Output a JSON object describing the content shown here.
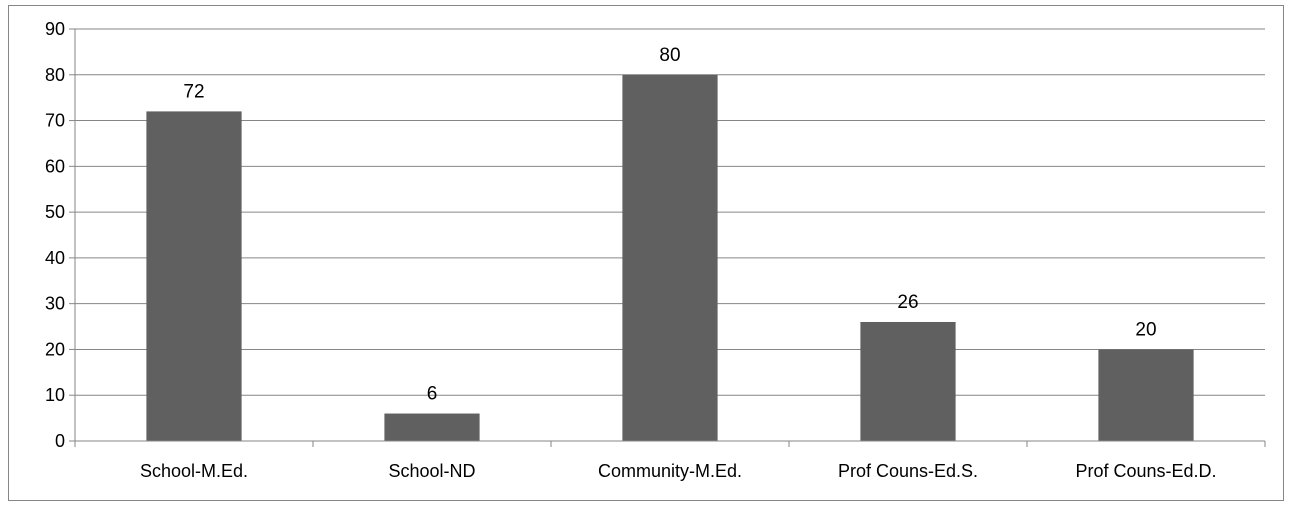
{
  "chart_data": {
    "type": "bar",
    "categories": [
      "School-M.Ed.",
      "School-ND",
      "Community-M.Ed.",
      "Prof Couns-Ed.S.",
      "Prof Couns-Ed.D."
    ],
    "values": [
      72,
      6,
      80,
      26,
      20
    ],
    "data_labels": [
      "72",
      "6",
      "80",
      "26",
      "20"
    ],
    "yticks": [
      "0",
      "10",
      "20",
      "30",
      "40",
      "50",
      "60",
      "70",
      "80",
      "90"
    ],
    "ylim": [
      0,
      90
    ],
    "grid": true,
    "legend": "none",
    "title": "",
    "xlabel": "",
    "ylabel": "",
    "colors": {
      "bar": "#606060",
      "grid": "#868686",
      "axis": "#868686",
      "border": "#868686"
    }
  }
}
